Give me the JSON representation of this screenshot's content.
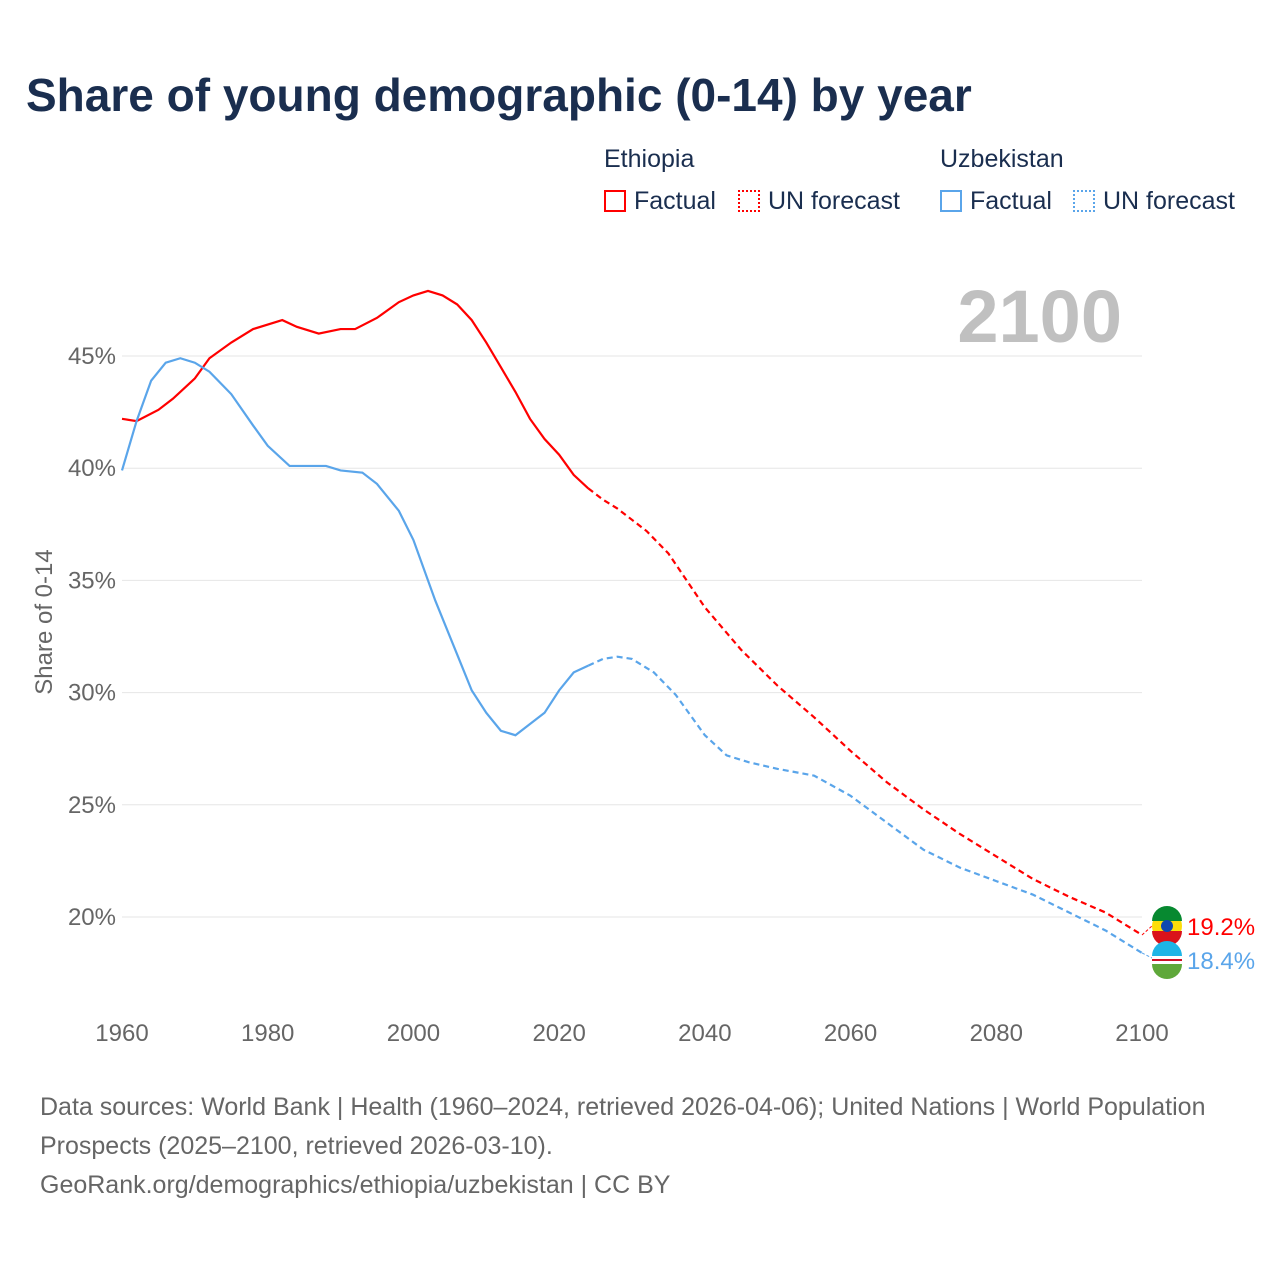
{
  "chart_data": {
    "type": "line",
    "title": "Share of young demographic (0-14) by year",
    "ylabel": "Share of 0-14",
    "xlabel": "",
    "xlim": [
      1960,
      2100
    ],
    "ylim": [
      17,
      48.5
    ],
    "x_ticks": [
      "1960",
      "1980",
      "2000",
      "2020",
      "2040",
      "2060",
      "2080",
      "2100"
    ],
    "y_ticks": [
      {
        "v": 20,
        "label": "20%"
      },
      {
        "v": 25,
        "label": "25%"
      },
      {
        "v": 30,
        "label": "30%"
      },
      {
        "v": 35,
        "label": "35%"
      },
      {
        "v": 40,
        "label": "40%"
      },
      {
        "v": 45,
        "label": "45%"
      }
    ],
    "year_label": "2100",
    "forecast_start": 2024,
    "legend": {
      "groups": [
        {
          "name": "Ethiopia",
          "factual": "Factual",
          "forecast": "UN forecast"
        },
        {
          "name": "Uzbekistan",
          "factual": "Factual",
          "forecast": "UN forecast"
        }
      ]
    },
    "series": [
      {
        "name": "Ethiopia",
        "color": "#ff0000",
        "end_label": "19.2%",
        "x": [
          1960,
          1962,
          1965,
          1967,
          1970,
          1972,
          1975,
          1978,
          1982,
          1984,
          1987,
          1990,
          1992,
          1995,
          1998,
          2000,
          2002,
          2004,
          2006,
          2008,
          2010,
          2012,
          2014,
          2016,
          2018,
          2020,
          2022,
          2024,
          2026,
          2028,
          2030,
          2032,
          2035,
          2040,
          2045,
          2050,
          2055,
          2060,
          2065,
          2070,
          2075,
          2080,
          2085,
          2090,
          2095,
          2100
        ],
        "values": [
          42.2,
          42.1,
          42.6,
          43.1,
          44.0,
          44.9,
          45.6,
          46.2,
          46.6,
          46.3,
          46.0,
          46.2,
          46.2,
          46.7,
          47.4,
          47.7,
          47.9,
          47.7,
          47.3,
          46.6,
          45.6,
          44.5,
          43.4,
          42.2,
          41.3,
          40.6,
          39.7,
          39.1,
          38.6,
          38.2,
          37.7,
          37.2,
          36.2,
          33.8,
          31.9,
          30.3,
          28.9,
          27.4,
          26.0,
          24.8,
          23.7,
          22.7,
          21.7,
          20.9,
          20.2,
          19.2
        ]
      },
      {
        "name": "Uzbekistan",
        "color": "#5aa5ea",
        "end_label": "18.4%",
        "x": [
          1960,
          1962,
          1964,
          1966,
          1968,
          1970,
          1972,
          1975,
          1978,
          1980,
          1983,
          1988,
          1990,
          1993,
          1995,
          1998,
          2000,
          2003,
          2006,
          2008,
          2010,
          2012,
          2014,
          2016,
          2018,
          2020,
          2022,
          2024,
          2026,
          2028,
          2030,
          2033,
          2036,
          2040,
          2043,
          2046,
          2050,
          2055,
          2060,
          2065,
          2070,
          2075,
          2080,
          2085,
          2090,
          2095,
          2100
        ],
        "values": [
          39.9,
          42.1,
          43.9,
          44.7,
          44.9,
          44.7,
          44.3,
          43.3,
          41.9,
          41.0,
          40.1,
          40.1,
          39.9,
          39.8,
          39.3,
          38.1,
          36.8,
          34.1,
          31.7,
          30.1,
          29.1,
          28.3,
          28.1,
          28.6,
          29.1,
          30.1,
          30.9,
          31.2,
          31.5,
          31.6,
          31.5,
          30.9,
          29.9,
          28.1,
          27.2,
          26.9,
          26.6,
          26.3,
          25.4,
          24.2,
          23.0,
          22.2,
          21.6,
          21.0,
          20.2,
          19.4,
          18.4
        ]
      }
    ]
  },
  "source": {
    "line1": "Data sources: World Bank | Health (1960–2024, retrieved 2026-04-06); United Nations | World Population Prospects (2025–2100, retrieved 2026-03-10).",
    "line2": "GeoRank.org/demographics/ethiopia/uzbekistan | CC BY"
  }
}
